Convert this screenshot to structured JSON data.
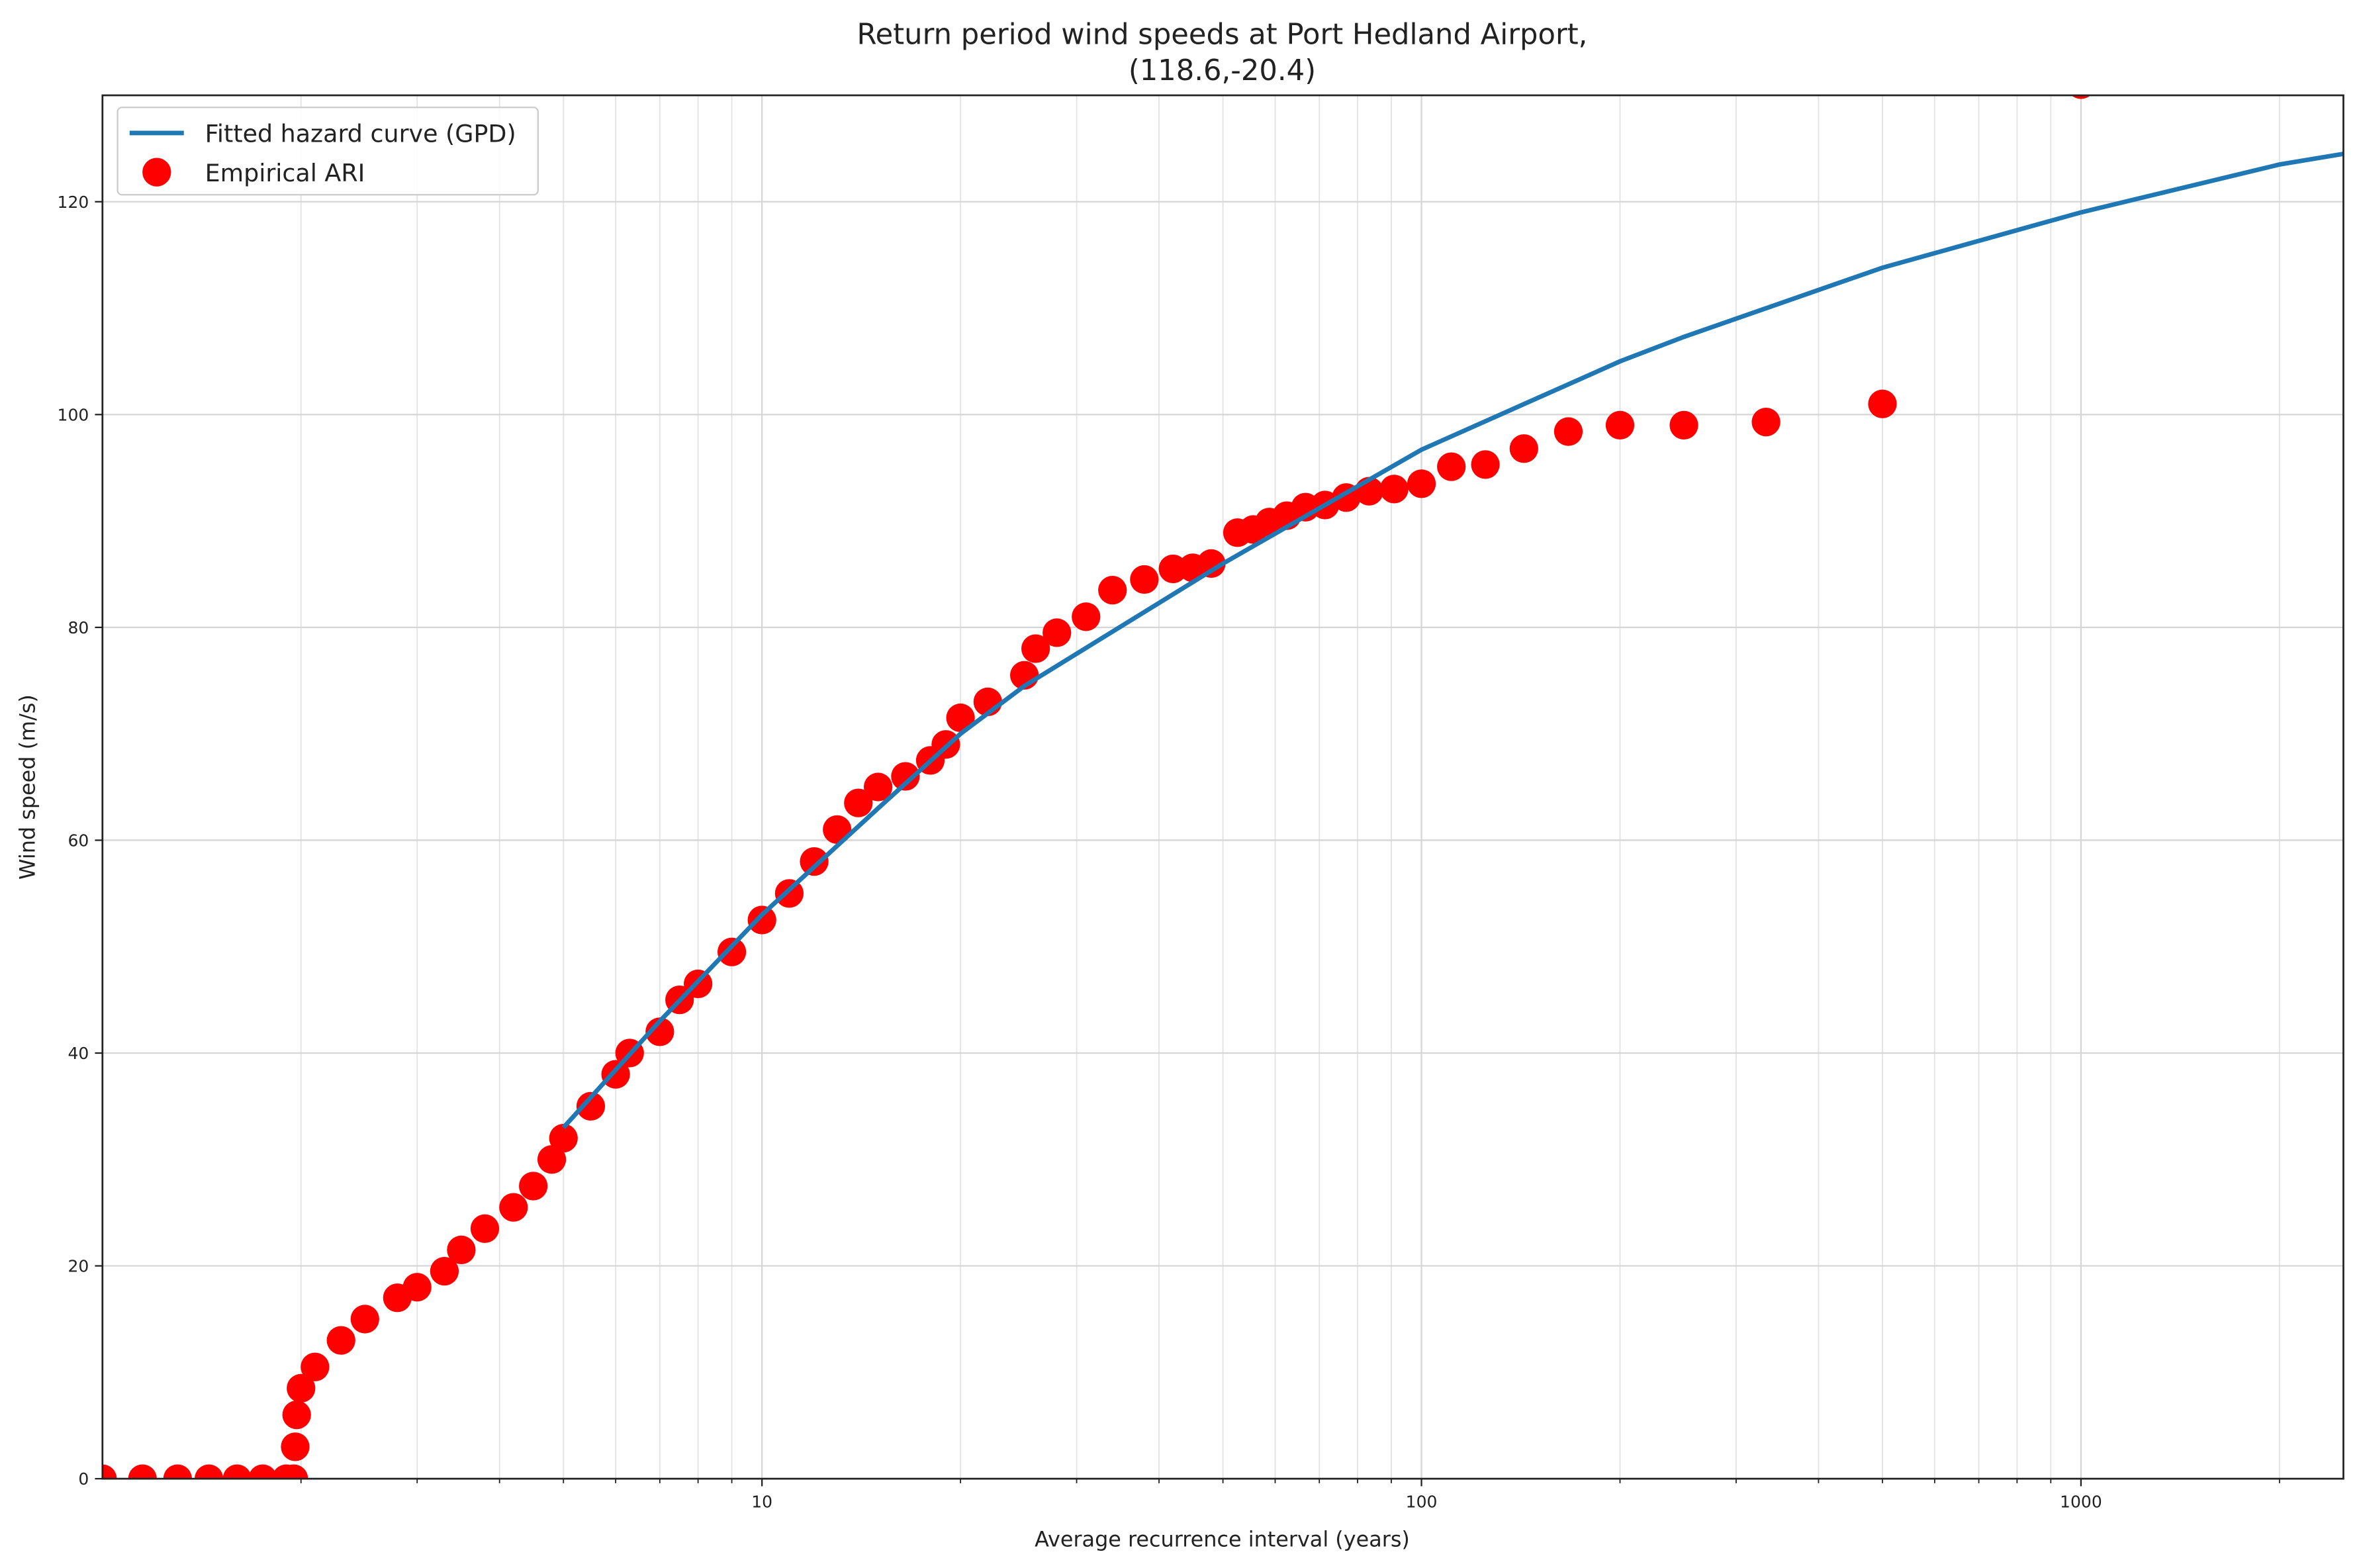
{
  "chart_data": {
    "type": "line",
    "title": "Return period wind speeds at Port Hedland Airport,",
    "subtitle": "(118.6,-20.4)",
    "x_label": "Average recurrence interval (years)",
    "y_label": "Wind speed (m/s)",
    "x_log": true,
    "xlim": [
      1,
      2500
    ],
    "ylim": [
      0,
      130
    ],
    "xticks": [
      10,
      100,
      1000
    ],
    "xminorticks": [
      2,
      3,
      4,
      5,
      6,
      7,
      8,
      9,
      20,
      30,
      40,
      50,
      60,
      70,
      80,
      90,
      200,
      300,
      400,
      500,
      600,
      700,
      800,
      900,
      2000
    ],
    "yticks": [
      0,
      20,
      40,
      60,
      80,
      100,
      120
    ],
    "grid": true,
    "legend": "upper left",
    "series": [
      {
        "name": "Fitted hazard curve (GPD)",
        "color": "#1f77b4",
        "type": "line",
        "x": [
          5,
          7,
          10,
          15,
          20,
          25,
          50,
          100,
          200,
          250,
          500,
          1000,
          2000,
          2500
        ],
        "values": [
          33,
          43,
          53,
          63,
          70,
          74.5,
          86,
          96.7,
          105,
          107.3,
          113.8,
          119,
          123.5,
          124.5
        ]
      },
      {
        "name": "Empirical ARI",
        "color": "#ff0000",
        "type": "scatter",
        "x": [
          1.0,
          1.15,
          1.3,
          1.45,
          1.6,
          1.75,
          1.9,
          1.95,
          1.96,
          1.97,
          2.0,
          2.1,
          2.3,
          2.5,
          2.8,
          3.0,
          3.3,
          3.5,
          3.8,
          4.2,
          4.5,
          4.8,
          5.0,
          5.5,
          6.0,
          6.3,
          7.0,
          7.5,
          8.0,
          9.0,
          10,
          11,
          12,
          13,
          14,
          15,
          16.5,
          18,
          19,
          20,
          22,
          25,
          26,
          28,
          31,
          34,
          38,
          42,
          45,
          48,
          52.6,
          55.6,
          58.8,
          62.5,
          66.7,
          71.4,
          76.9,
          83.3,
          90.9,
          100,
          111,
          125,
          143,
          167,
          200,
          250,
          333,
          500,
          1000
        ],
        "values": [
          0,
          0,
          0,
          0,
          0,
          0,
          0,
          0,
          3,
          6,
          8.5,
          10.5,
          13,
          15,
          17,
          18,
          19.5,
          21.5,
          23.5,
          25.5,
          27.5,
          30,
          32,
          35,
          38,
          40,
          42,
          45,
          46.5,
          49.5,
          52.5,
          55,
          58,
          61,
          63.5,
          65,
          66,
          67.5,
          69,
          71.5,
          73,
          75.5,
          78,
          79.5,
          81,
          83.5,
          84.5,
          85.5,
          85.6,
          86,
          88.9,
          89.2,
          89.9,
          90.5,
          91.3,
          91.5,
          92.2,
          92.8,
          93,
          93.5,
          95.1,
          95.3,
          96.8,
          98.4,
          99,
          99,
          99.3,
          101,
          131
        ]
      }
    ]
  }
}
